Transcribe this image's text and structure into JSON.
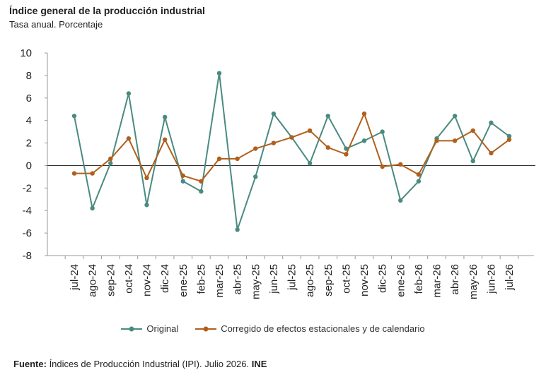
{
  "header": {
    "title": "Índice general de la producción industrial",
    "subtitle": "Tasa anual. Porcentaje"
  },
  "footer": {
    "source_label": "Fuente:",
    "source_text": " Índices de Producción Industrial (IPI). Julio 2026. ",
    "source_org": "INE"
  },
  "colors": {
    "original": "#4a8a80",
    "corrected": "#b05f1c",
    "axis": "#999999",
    "zero_line": "#333333"
  },
  "chart_data": {
    "type": "line",
    "title": "Índice general de la producción industrial",
    "subtitle": "Tasa anual. Porcentaje",
    "categories": [
      "jul-24",
      "ago-24",
      "sep-24",
      "oct-24",
      "nov-24",
      "dic-24",
      "ene-25",
      "feb-25",
      "mar-25",
      "abr-25",
      "may-25",
      "jun-25",
      "jul-25",
      "ago-25",
      "sep-25",
      "oct-25",
      "nov-25",
      "dic-25",
      "ene-26",
      "feb-26",
      "mar-26",
      "abr-26",
      "may-26",
      "jun-26",
      "jul-26"
    ],
    "ylim": [
      -8,
      10
    ],
    "yticks": [
      10,
      8,
      6,
      4,
      2,
      0,
      -2,
      -4,
      -6,
      -8
    ],
    "grid": false,
    "legend_position": "bottom",
    "series": [
      {
        "name": "Original",
        "values": [
          4.4,
          -3.8,
          0.2,
          6.4,
          -3.5,
          4.3,
          -1.4,
          -2.3,
          8.2,
          -5.7,
          -1.0,
          4.6,
          2.5,
          0.2,
          4.4,
          1.5,
          2.2,
          3.0,
          -3.1,
          -1.4,
          2.4,
          4.4,
          0.4,
          3.8,
          2.6
        ]
      },
      {
        "name": "Corregido de efectos estacionales y de calendario",
        "values": [
          -0.7,
          -0.7,
          0.6,
          2.4,
          -1.1,
          2.3,
          -0.9,
          -1.4,
          0.6,
          0.6,
          1.5,
          2.0,
          2.5,
          3.1,
          1.6,
          1.0,
          4.6,
          -0.1,
          0.1,
          -0.8,
          2.2,
          2.2,
          3.1,
          1.1,
          2.3
        ]
      }
    ]
  }
}
